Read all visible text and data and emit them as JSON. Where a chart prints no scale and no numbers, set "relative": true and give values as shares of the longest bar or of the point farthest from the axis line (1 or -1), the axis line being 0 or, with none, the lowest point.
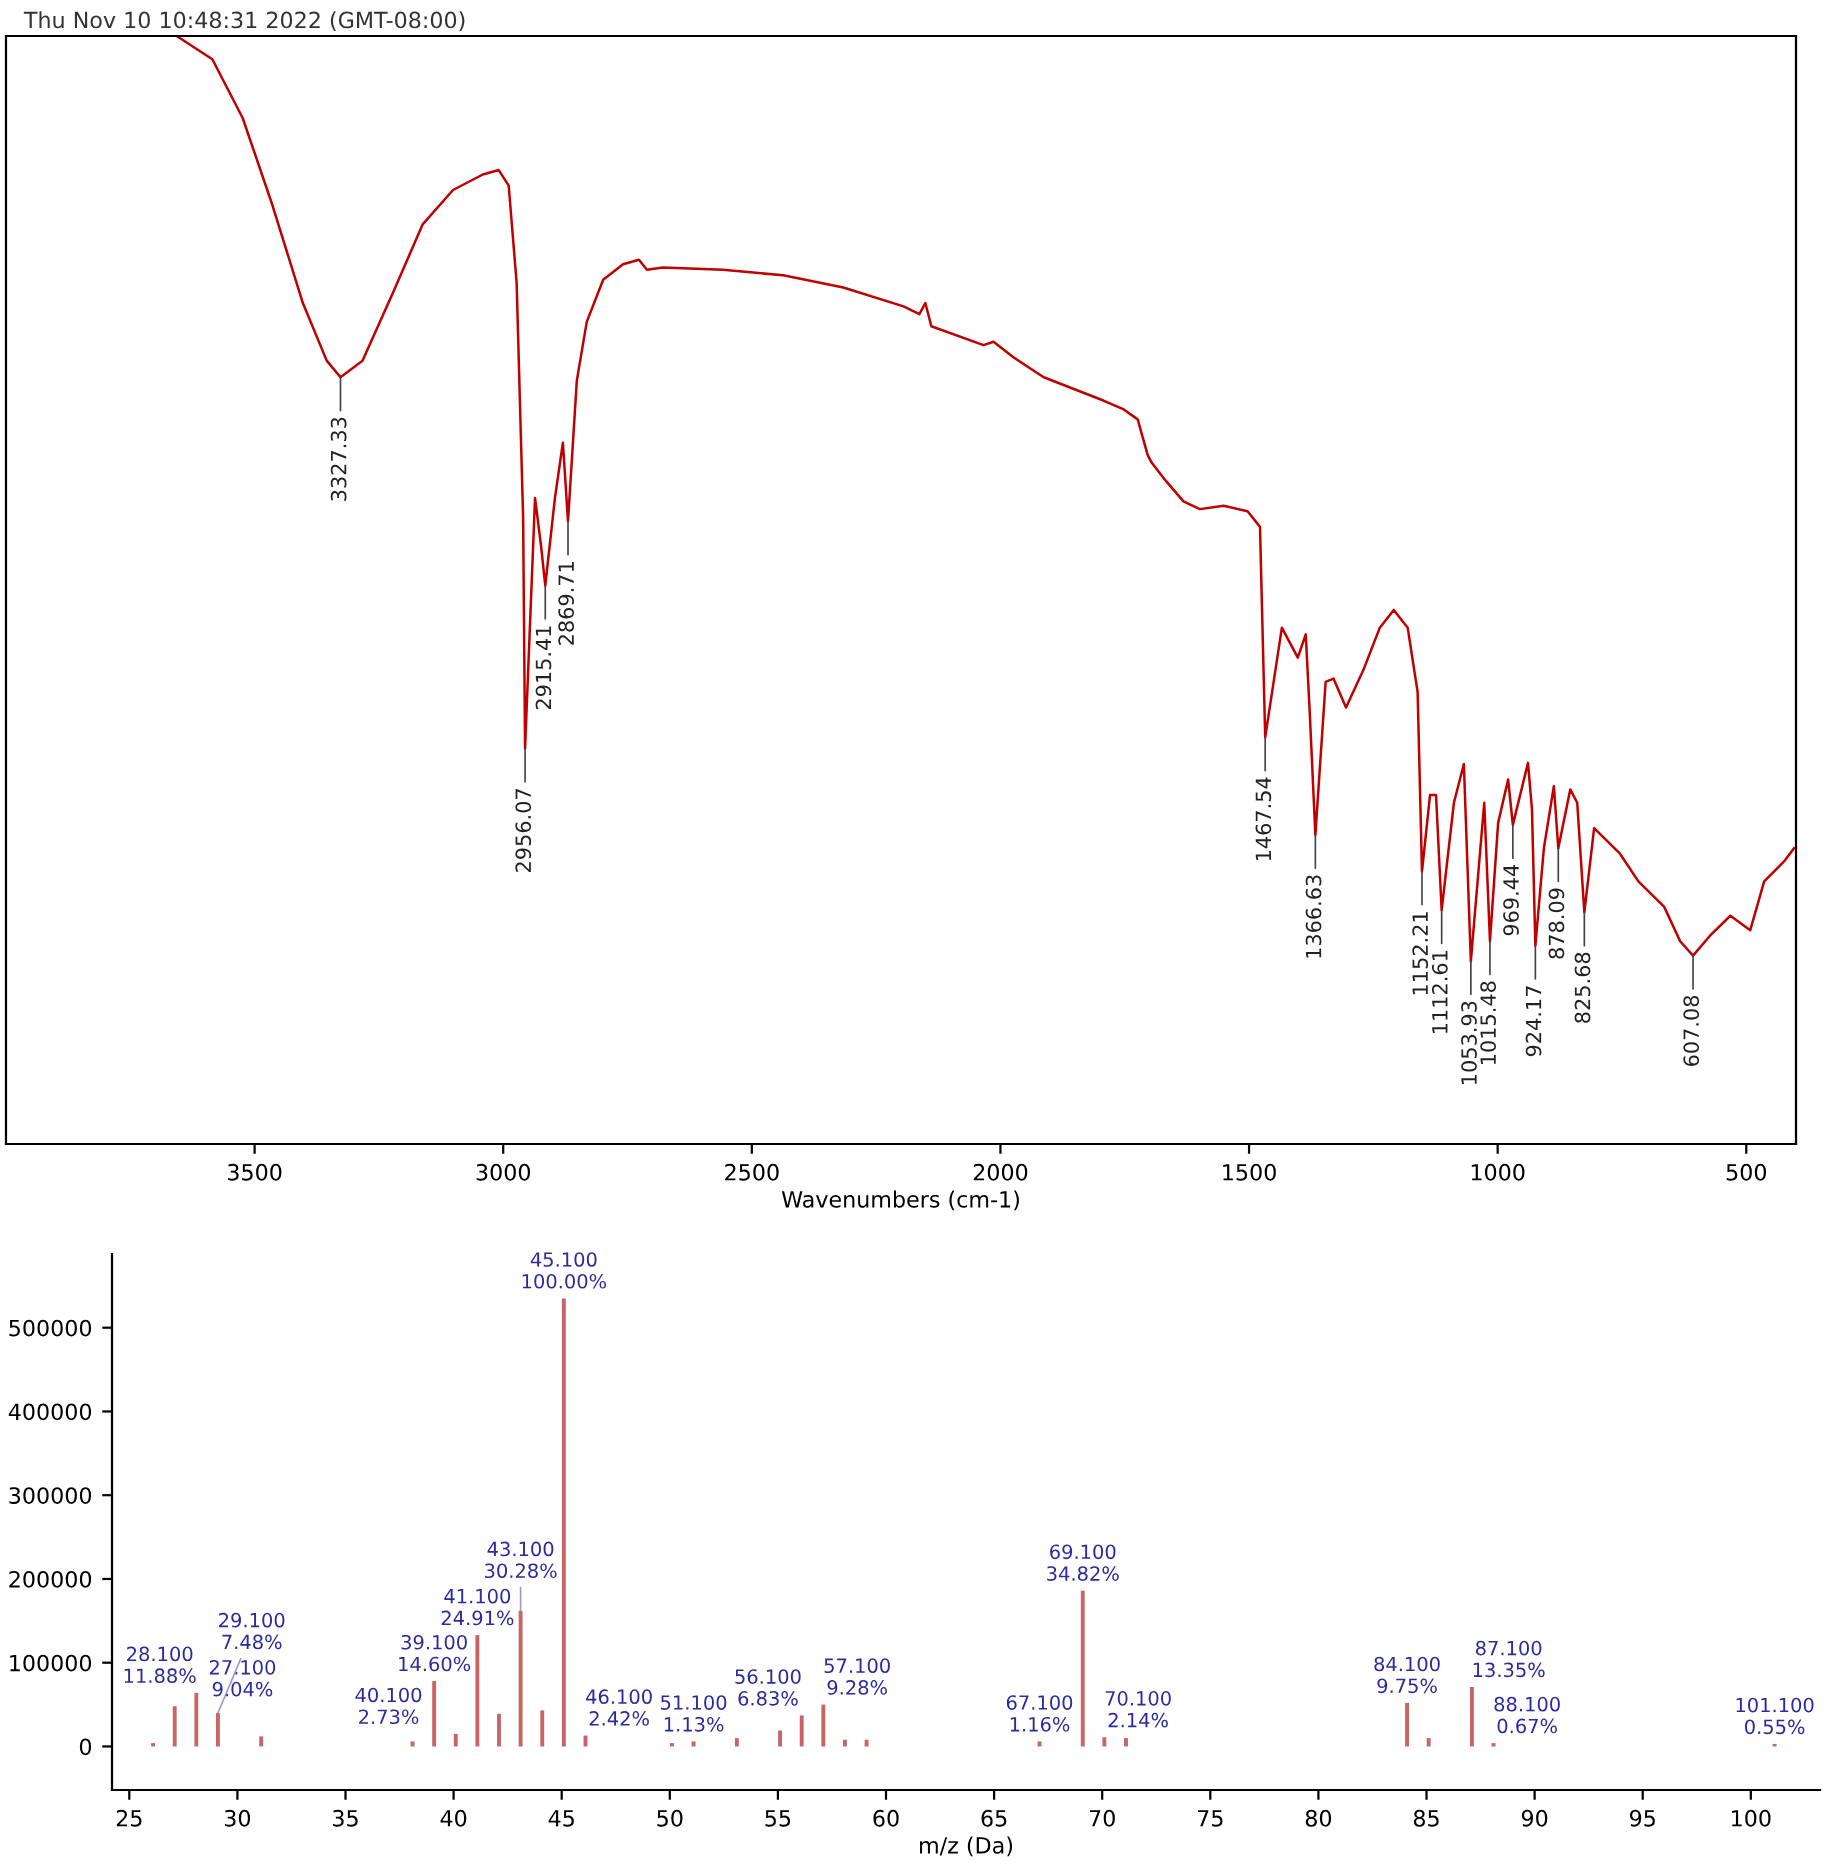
{
  "chart_data": [
    {
      "type": "line",
      "relative": true,
      "color": "#c00000",
      "xlabel": "Wavenumbers (cm-1)",
      "xlim": [
        4000,
        400
      ],
      "xticks": [
        3500,
        3000,
        2500,
        2000,
        1500,
        1000,
        500
      ],
      "grid": false,
      "x": [
        3657,
        3585,
        3524,
        3464,
        3403,
        3355,
        3327.33,
        3283,
        3222,
        3162,
        3101,
        3041,
        3009,
        2989,
        2973,
        2960,
        2956.07,
        2936,
        2924,
        2915.41,
        2896,
        2880,
        2869.71,
        2852,
        2832,
        2799,
        2759,
        2727,
        2711,
        2679,
        2558,
        2437,
        2316,
        2195,
        2163,
        2151,
        2139,
        2034,
        2014,
        1974,
        1913,
        1793,
        1752,
        1724,
        1704,
        1696,
        1672,
        1632,
        1599,
        1551,
        1503,
        1478,
        1467.54,
        1434,
        1402,
        1386,
        1378,
        1366.63,
        1346,
        1330,
        1305,
        1269,
        1237,
        1209,
        1181,
        1161,
        1152.21,
        1136,
        1124,
        1112.61,
        1088,
        1068,
        1053.93,
        1027,
        1015.48,
        999,
        979,
        969.44,
        939,
        931,
        924.17,
        907,
        887,
        878.09,
        854,
        840,
        825.68,
        806,
        754,
        717,
        665,
        633,
        607.08,
        573,
        532,
        492,
        464,
        424,
        404
      ],
      "values": [
        1.0,
        0.979,
        0.926,
        0.847,
        0.759,
        0.707,
        0.692,
        0.707,
        0.768,
        0.83,
        0.861,
        0.875,
        0.879,
        0.865,
        0.777,
        0.566,
        0.357,
        0.583,
        0.54,
        0.504,
        0.583,
        0.633,
        0.562,
        0.689,
        0.742,
        0.78,
        0.794,
        0.798,
        0.789,
        0.791,
        0.789,
        0.784,
        0.773,
        0.756,
        0.749,
        0.759,
        0.738,
        0.721,
        0.724,
        0.71,
        0.692,
        0.671,
        0.663,
        0.654,
        0.622,
        0.615,
        0.601,
        0.58,
        0.573,
        0.576,
        0.571,
        0.557,
        0.367,
        0.466,
        0.439,
        0.46,
        0.39,
        0.279,
        0.417,
        0.42,
        0.394,
        0.429,
        0.466,
        0.482,
        0.466,
        0.408,
        0.246,
        0.315,
        0.315,
        0.211,
        0.308,
        0.343,
        0.165,
        0.308,
        0.183,
        0.29,
        0.329,
        0.288,
        0.344,
        0.302,
        0.179,
        0.267,
        0.323,
        0.267,
        0.32,
        0.308,
        0.209,
        0.285,
        0.262,
        0.237,
        0.214,
        0.183,
        0.17,
        0.188,
        0.206,
        0.193,
        0.237,
        0.255,
        0.267
      ],
      "annotations": [
        "Thu Nov 10 10:48:31 2022 (GMT-08:00)",
        {
          "text": "3327.33",
          "x": 3327.33,
          "y": 0.692
        },
        {
          "text": "2956.07",
          "x": 2956.07,
          "y": 0.357
        },
        {
          "text": "2915.41",
          "x": 2915.41,
          "y": 0.504
        },
        {
          "text": "2869.71",
          "x": 2869.71,
          "y": 0.562
        },
        {
          "text": "1467.54",
          "x": 1467.54,
          "y": 0.367
        },
        {
          "text": "1366.63",
          "x": 1366.63,
          "y": 0.279
        },
        {
          "text": "1152.21",
          "x": 1152.21,
          "y": 0.246
        },
        {
          "text": "1112.61",
          "x": 1112.61,
          "y": 0.211
        },
        {
          "text": "1053.93",
          "x": 1053.93,
          "y": 0.165
        },
        {
          "text": "1015.48",
          "x": 1015.48,
          "y": 0.183
        },
        {
          "text": "969.44",
          "x": 969.44,
          "y": 0.288
        },
        {
          "text": "924.17",
          "x": 924.17,
          "y": 0.179
        },
        {
          "text": "878.09",
          "x": 878.09,
          "y": 0.267
        },
        {
          "text": "825.68",
          "x": 825.68,
          "y": 0.209
        },
        {
          "text": "607.08",
          "x": 607.08,
          "y": 0.17
        }
      ]
    },
    {
      "type": "bar",
      "color": "#c86464",
      "xlabel": "m/z (Da)",
      "xlim": [
        24.2,
        103.2
      ],
      "xticks": [
        25,
        30,
        35,
        40,
        45,
        50,
        55,
        60,
        65,
        70,
        75,
        80,
        85,
        90,
        95,
        100
      ],
      "ylim": [
        -52000,
        588000
      ],
      "yticks": [
        0,
        100000,
        200000,
        300000,
        400000,
        500000
      ],
      "grid": false,
      "x": [
        26.1,
        27.1,
        28.1,
        29.1,
        31.1,
        38.1,
        39.1,
        40.1,
        41.1,
        42.1,
        43.1,
        44.1,
        45.1,
        46.1,
        50.1,
        51.1,
        53.1,
        55.1,
        56.1,
        57.1,
        58.1,
        59.1,
        67.1,
        69.1,
        70.1,
        71.1,
        84.1,
        85.1,
        87.1,
        88.1,
        101.1
      ],
      "values": [
        4000,
        48000,
        64000,
        40000,
        12000,
        6000,
        78000,
        15000,
        133000,
        39000,
        162000,
        43000,
        535000,
        13000,
        4000,
        6000,
        10000,
        19000,
        37000,
        50000,
        8000,
        8000,
        6000,
        186000,
        11000,
        10000,
        52000,
        10000,
        71000,
        4000,
        3000
      ],
      "annotations": [
        {
          "text": "27.100\n9.04%",
          "x": 27.1,
          "y": 48000
        },
        {
          "text": "28.100\n11.88%",
          "x": 28.1,
          "y": 64000
        },
        {
          "text": "29.100\n7.48%",
          "x": 29.1,
          "y": 40000
        },
        {
          "text": "39.100\n14.60%",
          "x": 39.1,
          "y": 78000
        },
        {
          "text": "40.100\n2.73%",
          "x": 40.1,
          "y": 15000
        },
        {
          "text": "41.100\n24.91%",
          "x": 41.1,
          "y": 133000
        },
        {
          "text": "43.100\n30.28%",
          "x": 43.1,
          "y": 162000
        },
        {
          "text": "45.100\n100.00%",
          "x": 45.1,
          "y": 535000
        },
        {
          "text": "46.100\n2.42%",
          "x": 46.1,
          "y": 13000
        },
        {
          "text": "51.100\n1.13%",
          "x": 51.1,
          "y": 6000
        },
        {
          "text": "56.100\n6.83%",
          "x": 56.1,
          "y": 37000
        },
        {
          "text": "57.100\n9.28%",
          "x": 57.1,
          "y": 50000
        },
        {
          "text": "67.100\n1.16%",
          "x": 67.1,
          "y": 6000
        },
        {
          "text": "69.100\n34.82%",
          "x": 69.1,
          "y": 186000
        },
        {
          "text": "70.100\n2.14%",
          "x": 70.1,
          "y": 11000
        },
        {
          "text": "84.100\n9.75%",
          "x": 84.1,
          "y": 52000
        },
        {
          "text": "87.100\n13.35%",
          "x": 87.1,
          "y": 71000
        },
        {
          "text": "88.100\n0.67%",
          "x": 88.1,
          "y": 4000
        },
        {
          "text": "101.100\n0.55%",
          "x": 101.1,
          "y": 3000
        }
      ]
    }
  ]
}
